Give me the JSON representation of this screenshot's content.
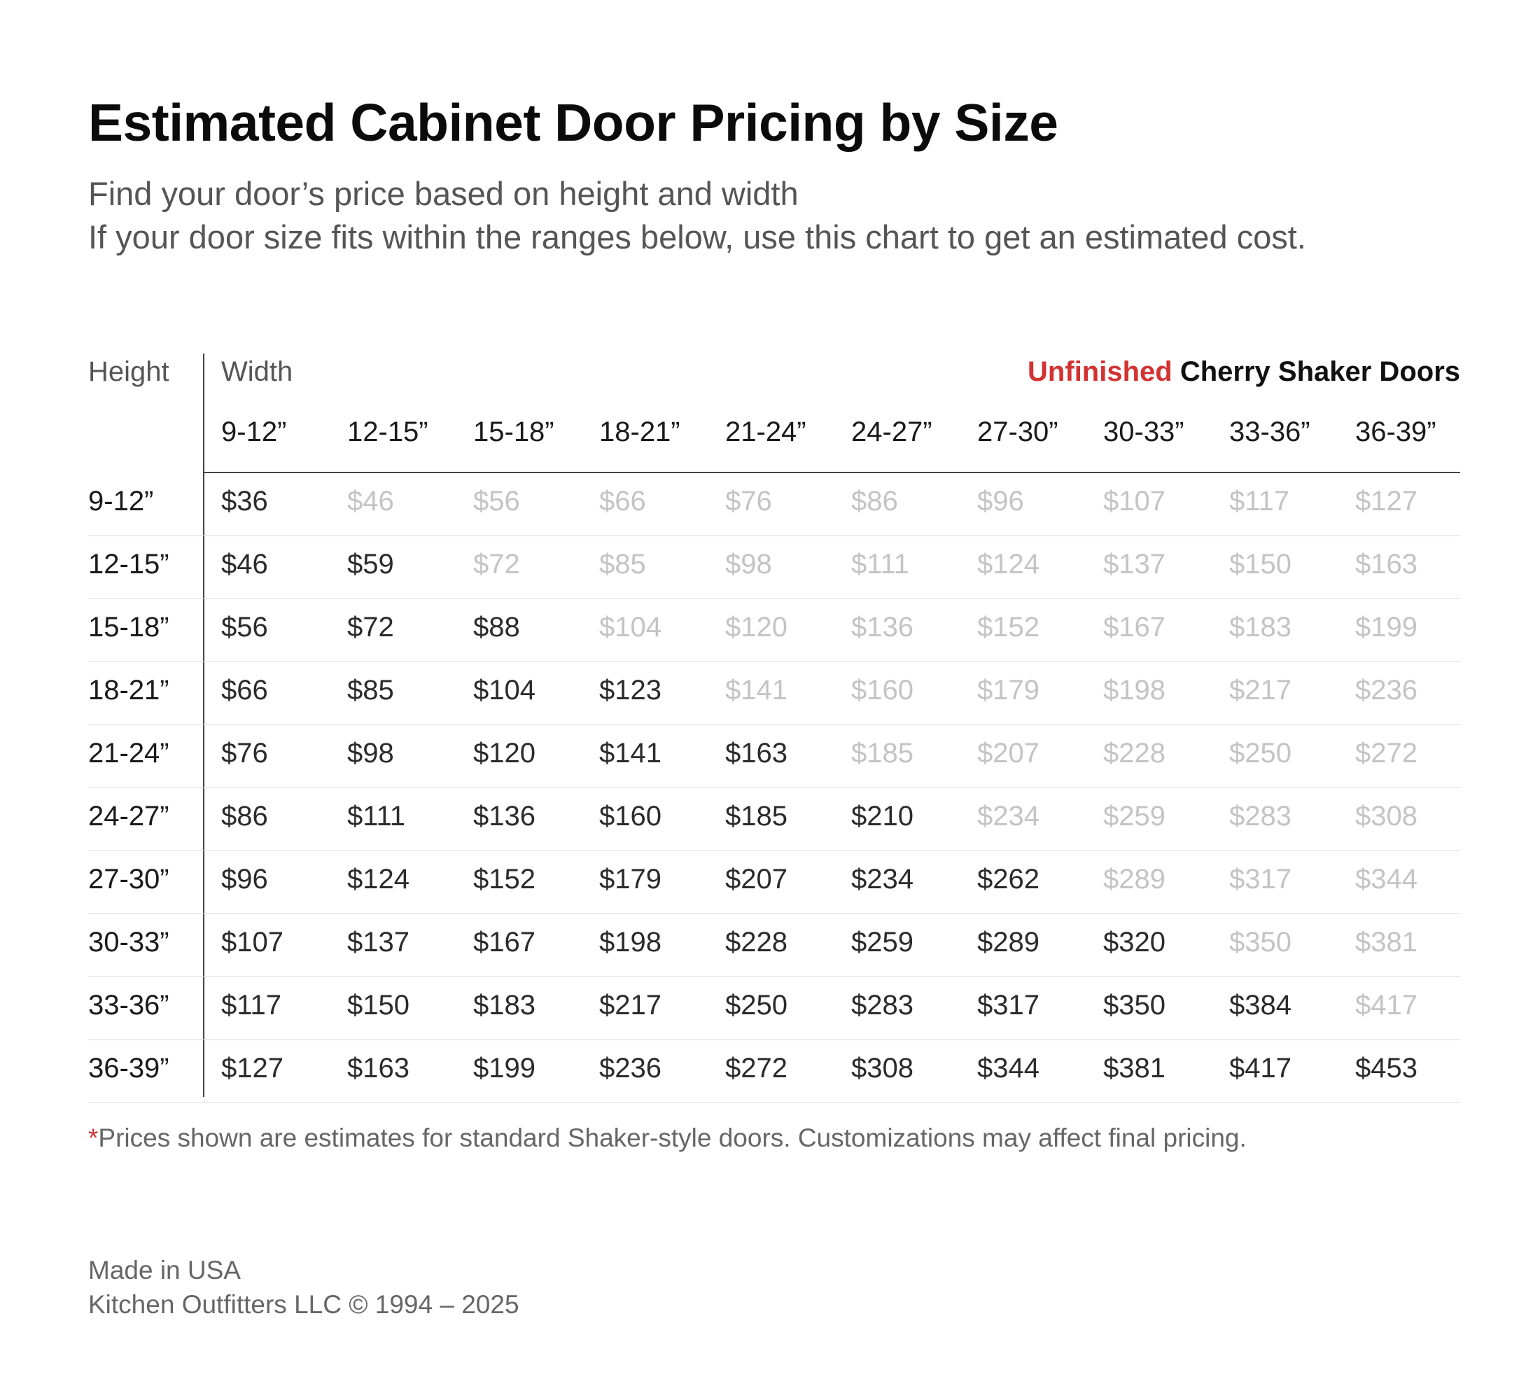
{
  "title": "Estimated Cabinet Door Pricing by Size",
  "subtitle": {
    "line1": "Find your door’s price based on height and width",
    "line2": "If your door size fits within the ranges below, use this chart to get an estimated cost."
  },
  "table": {
    "height_label": "Height",
    "width_label": "Width",
    "product_accent": "Unfinished",
    "product_rest": "Cherry Shaker Doors",
    "accent_color": "#d23232",
    "columns": [
      "9-12”",
      "12-15”",
      "15-18”",
      "18-21”",
      "21-24”",
      "24-27”",
      "27-30”",
      "30-33”",
      "33-36”",
      "36-39”"
    ],
    "rows": [
      {
        "label": "9-12”",
        "prices": [
          "$36",
          "$46",
          "$56",
          "$66",
          "$76",
          "$86",
          "$96",
          "$107",
          "$117",
          "$127"
        ]
      },
      {
        "label": "12-15”",
        "prices": [
          "$46",
          "$59",
          "$72",
          "$85",
          "$98",
          "$111",
          "$124",
          "$137",
          "$150",
          "$163"
        ]
      },
      {
        "label": "15-18”",
        "prices": [
          "$56",
          "$72",
          "$88",
          "$104",
          "$120",
          "$136",
          "$152",
          "$167",
          "$183",
          "$199"
        ]
      },
      {
        "label": "18-21”",
        "prices": [
          "$66",
          "$85",
          "$104",
          "$123",
          "$141",
          "$160",
          "$179",
          "$198",
          "$217",
          "$236"
        ]
      },
      {
        "label": "21-24”",
        "prices": [
          "$76",
          "$98",
          "$120",
          "$141",
          "$163",
          "$185",
          "$207",
          "$228",
          "$250",
          "$272"
        ]
      },
      {
        "label": "24-27”",
        "prices": [
          "$86",
          "$111",
          "$136",
          "$160",
          "$185",
          "$210",
          "$234",
          "$259",
          "$283",
          "$308"
        ]
      },
      {
        "label": "27-30”",
        "prices": [
          "$96",
          "$124",
          "$152",
          "$179",
          "$207",
          "$234",
          "$262",
          "$289",
          "$317",
          "$344"
        ]
      },
      {
        "label": "30-33”",
        "prices": [
          "$107",
          "$137",
          "$167",
          "$198",
          "$228",
          "$259",
          "$289",
          "$320",
          "$350",
          "$381"
        ]
      },
      {
        "label": "33-36”",
        "prices": [
          "$117",
          "$150",
          "$183",
          "$217",
          "$250",
          "$283",
          "$317",
          "$350",
          "$384",
          "$417"
        ]
      },
      {
        "label": "36-39”",
        "prices": [
          "$127",
          "$163",
          "$199",
          "$236",
          "$272",
          "$308",
          "$344",
          "$381",
          "$417",
          "$453"
        ]
      }
    ]
  },
  "footnote": {
    "marker": "*",
    "text": "Prices shown are estimates for standard Shaker-style doors. Customizations may affect final pricing."
  },
  "footer": {
    "line1": "Made in USA",
    "line2": "Kitchen Outfitters LLC © 1994 – 2025"
  }
}
